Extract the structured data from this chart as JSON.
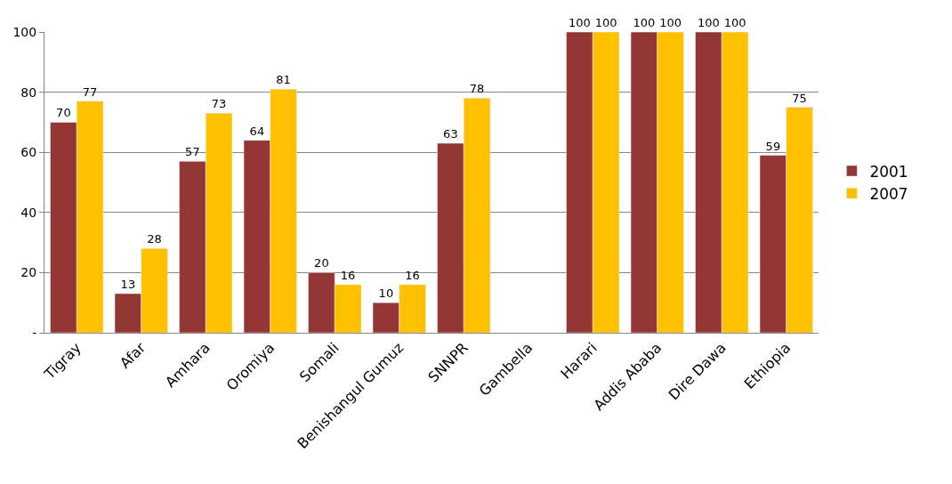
{
  "chart_data": {
    "type": "bar",
    "categories": [
      "Tigray",
      "Afar",
      "Amhara",
      "Oromiya",
      "Somali",
      "Benishangul Gumuz",
      "SNNPR",
      "Gambella",
      "Harari",
      "Addis Ababa",
      "Dire Dawa",
      "Ethiopia"
    ],
    "series": [
      {
        "name": "2001",
        "color": "#943634",
        "values": [
          70,
          13,
          57,
          64,
          20,
          10,
          63,
          null,
          100,
          100,
          100,
          59
        ]
      },
      {
        "name": "2007",
        "color": "#ffc000",
        "values": [
          77,
          28,
          73,
          81,
          16,
          16,
          78,
          null,
          100,
          100,
          100,
          75
        ]
      }
    ],
    "ylim": [
      0,
      100
    ],
    "yticks": [
      {
        "value": 0,
        "label": "-"
      },
      20,
      40,
      60,
      80,
      100
    ],
    "grid": "y",
    "legend": "right",
    "data_labels": true
  }
}
